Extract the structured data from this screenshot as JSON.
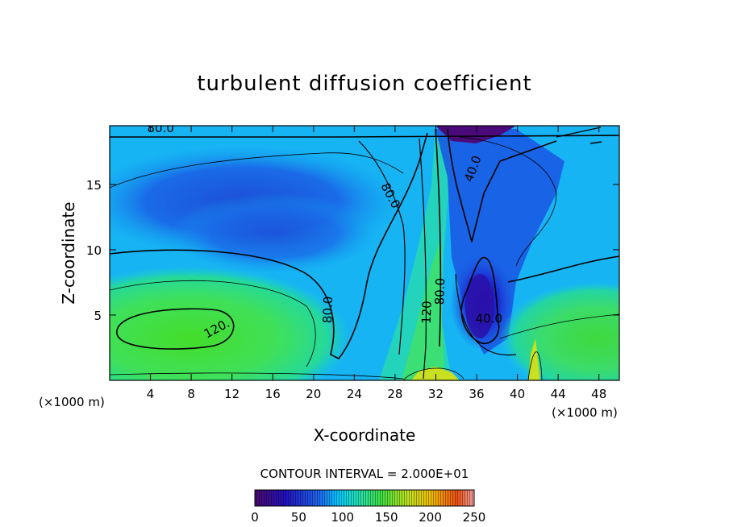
{
  "chart_data": {
    "type": "heatmap",
    "title": "turbulent diffusion coefficient",
    "xlabel": "X-coordinate",
    "ylabel": "Z-coordinate",
    "x_unit_left": "(×1000 m)",
    "x_unit_right": "(×1000 m)",
    "xlim": [
      0,
      50
    ],
    "ylim": [
      0,
      19.5
    ],
    "xticks": [
      4,
      8,
      12,
      16,
      20,
      24,
      28,
      32,
      36,
      40,
      44,
      48
    ],
    "yticks": [
      5,
      10,
      15
    ],
    "contour_interval": "CONTOUR INTERVAL = 2.000E+01",
    "contour_labels": [
      {
        "text": "80.0",
        "x": 5,
        "z": 19.0
      },
      {
        "text": "80.0",
        "x": 27.2,
        "z": 14.0
      },
      {
        "text": "80.0",
        "x": 21.8,
        "z": 5.4
      },
      {
        "text": "120.",
        "x": 10.7,
        "z": 3.7
      },
      {
        "text": "40.0",
        "x": 36.0,
        "z": 16.1
      },
      {
        "text": "40.0",
        "x": 37.2,
        "z": 4.4
      },
      {
        "text": "80.0",
        "x": 32.8,
        "z": 6.8
      },
      {
        "text": "120",
        "x": 31.5,
        "z": 5.2
      }
    ],
    "colorbar": {
      "min": 0,
      "max": 250,
      "ticks": [
        0,
        50,
        100,
        150,
        200,
        250
      ]
    },
    "colors": {
      "low": "#4a0a6e",
      "blue": "#1e5ce6",
      "cyan": "#00c8ff",
      "teal": "#20e0c0",
      "green": "#40e040",
      "yellow": "#e0e000",
      "red": "#e01010"
    }
  }
}
